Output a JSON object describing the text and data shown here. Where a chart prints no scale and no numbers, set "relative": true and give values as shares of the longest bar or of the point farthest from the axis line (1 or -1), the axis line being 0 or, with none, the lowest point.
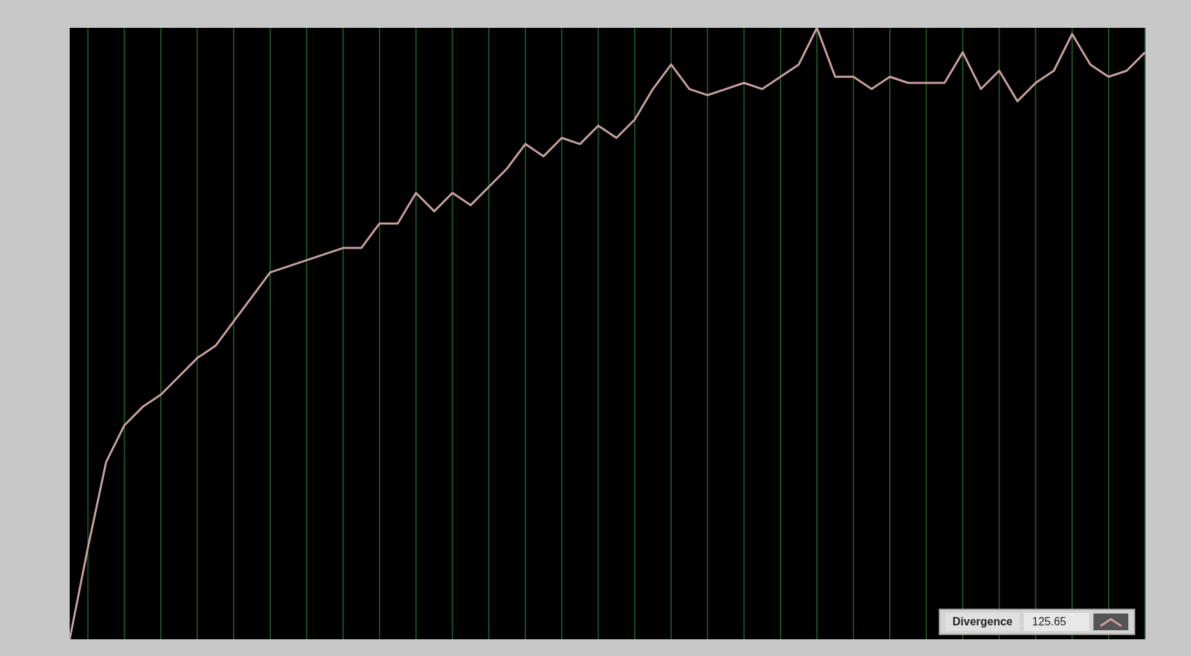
{
  "chart_data": {
    "type": "line",
    "relative": true,
    "grid": "x",
    "legend": "bottom right",
    "marker": "none",
    "line_style": "solid",
    "categories": [
      null,
      null,
      null,
      null,
      null,
      null,
      null,
      null,
      null,
      null,
      null,
      null,
      null,
      null,
      null,
      null,
      null,
      null,
      null,
      null,
      null,
      null,
      null,
      null,
      null,
      null,
      null,
      null,
      null,
      null,
      null,
      null,
      null,
      null,
      null,
      null,
      null,
      null,
      null,
      null,
      null,
      null,
      null,
      null,
      null,
      null,
      null,
      null,
      null,
      null,
      null,
      null,
      null,
      null,
      null,
      null,
      null,
      null,
      null,
      null
    ],
    "series": [
      {
        "name": "Divergence",
        "color": "#c8a0a0",
        "values": [
          0,
          0.15,
          0.29,
          0.35,
          0.38,
          0.4,
          0.43,
          0.46,
          0.48,
          0.52,
          0.56,
          0.6,
          0.61,
          0.62,
          0.63,
          0.64,
          0.64,
          0.68,
          0.68,
          0.73,
          0.7,
          0.73,
          0.71,
          0.74,
          0.77,
          0.81,
          0.79,
          0.82,
          0.81,
          0.84,
          0.82,
          0.85,
          0.9,
          0.94,
          0.9,
          0.89,
          0.9,
          0.91,
          0.9,
          0.92,
          0.94,
          1,
          0.92,
          0.92,
          0.9,
          0.92,
          0.91,
          0.91,
          0.91,
          0.96,
          0.9,
          0.93,
          0.88,
          0.91,
          0.93,
          0.99,
          0.94,
          0.92,
          0.93,
          0.96
        ]
      }
    ],
    "annotations": [
      "125.65"
    ]
  }
}
